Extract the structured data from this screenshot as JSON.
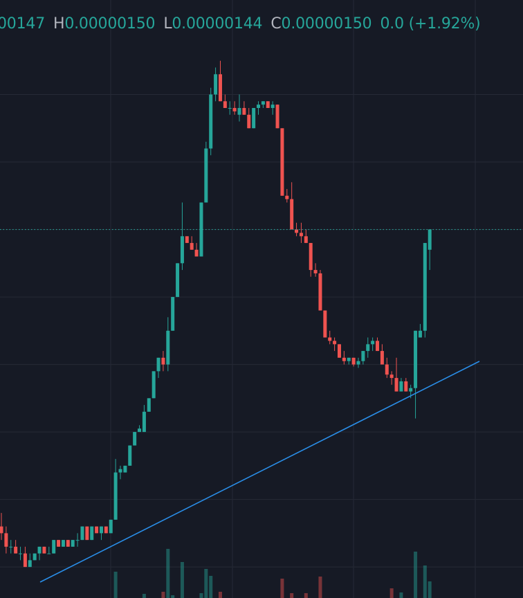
{
  "chart_data": {
    "type": "candlestick",
    "header": {
      "open": "00147",
      "high_key": "H",
      "high": "0.00000150",
      "low_key": "L",
      "low": "0.00000144",
      "close_key": "C",
      "close": "0.00000150",
      "change": "0.0",
      "change_pct": "(+1.92%)"
    },
    "open": [
      1.06e-06,
      1.05e-06,
      1.03e-06,
      1.03e-06,
      1.02e-06,
      1.02e-06,
      1e-06,
      1.01e-06,
      1.02e-06,
      1.03e-06,
      1.02e-06,
      1.02e-06,
      1.04e-06,
      1.03e-06,
      1.04e-06,
      1.03e-06,
      1.04e-06,
      1.04e-06,
      1.06e-06,
      1.04e-06,
      1.06e-06,
      1.05e-06,
      1.06e-06,
      1.05e-06,
      1.07e-06,
      1.14e-06,
      1.14e-06,
      1.15e-06,
      1.18e-06,
      1.2e-06,
      1.2e-06,
      1.23e-06,
      1.25e-06,
      1.29e-06,
      1.31e-06,
      1.3e-06,
      1.35e-06,
      1.4e-06,
      1.45e-06,
      1.49e-06,
      1.48e-06,
      1.47e-06,
      1.46e-06,
      1.54e-06,
      1.62e-06,
      1.7e-06,
      1.73e-06,
      1.69e-06,
      1.68e-06,
      1.68e-06,
      1.67e-06,
      1.68e-06,
      1.67e-06,
      1.65e-06,
      1.68e-06,
      1.685e-06,
      1.69e-06,
      1.68e-06,
      1.685e-06,
      1.65e-06,
      1.55e-06,
      1.545e-06,
      1.5e-06,
      1.495e-06,
      1.49e-06,
      1.48e-06,
      1.44e-06,
      1.435e-06,
      1.38e-06,
      1.34e-06,
      1.335e-06,
      1.33e-06,
      1.31e-06,
      1.305e-06,
      1.31e-06,
      1.3e-06,
      1.305e-06,
      1.32e-06,
      1.33e-06,
      1.335e-06,
      1.32e-06,
      1.3e-06,
      1.285e-06,
      1.28e-06,
      1.26e-06,
      1.275e-06,
      1.26e-06,
      1.265e-06,
      1.34e-06,
      1.35e-06,
      1.47e-06
    ],
    "high": [
      1.08e-06,
      1.06e-06,
      1.04e-06,
      1.04e-06,
      1.03e-06,
      1.03e-06,
      1.02e-06,
      1.02e-06,
      1.03e-06,
      1.03e-06,
      1.03e-06,
      1.04e-06,
      1.04e-06,
      1.04e-06,
      1.04e-06,
      1.04e-06,
      1.05e-06,
      1.06e-06,
      1.06e-06,
      1.06e-06,
      1.06e-06,
      1.06e-06,
      1.06e-06,
      1.07e-06,
      1.16e-06,
      1.15e-06,
      1.15e-06,
      1.18e-06,
      1.2e-06,
      1.21e-06,
      1.24e-06,
      1.25e-06,
      1.29e-06,
      1.31e-06,
      1.32e-06,
      1.37e-06,
      1.4e-06,
      1.45e-06,
      1.54e-06,
      1.49e-06,
      1.49e-06,
      1.48e-06,
      1.54e-06,
      1.63e-06,
      1.71e-06,
      1.74e-06,
      1.75e-06,
      1.7e-06,
      1.69e-06,
      1.69e-06,
      1.7e-06,
      1.69e-06,
      1.68e-06,
      1.68e-06,
      1.69e-06,
      1.69e-06,
      1.69e-06,
      1.69e-06,
      1.685e-06,
      1.65e-06,
      1.56e-06,
      1.57e-06,
      1.51e-06,
      1.51e-06,
      1.5e-06,
      1.48e-06,
      1.45e-06,
      1.44e-06,
      1.38e-06,
      1.35e-06,
      1.34e-06,
      1.33e-06,
      1.32e-06,
      1.31e-06,
      1.31e-06,
      1.31e-06,
      1.32e-06,
      1.34e-06,
      1.34e-06,
      1.34e-06,
      1.33e-06,
      1.31e-06,
      1.29e-06,
      1.31e-06,
      1.28e-06,
      1.28e-06,
      1.27e-06,
      1.35e-06,
      1.36e-06,
      1.48e-06,
      1.5e-06
    ],
    "low": [
      1.04e-06,
      1.02e-06,
      1.02e-06,
      1.02e-06,
      1.01e-06,
      1e-06,
      1e-06,
      1.01e-06,
      1.01e-06,
      1.02e-06,
      1.02e-06,
      1.02e-06,
      1.03e-06,
      1.03e-06,
      1.03e-06,
      1.03e-06,
      1.03e-06,
      1.04e-06,
      1.04e-06,
      1.04e-06,
      1.05e-06,
      1.04e-06,
      1.05e-06,
      1.05e-06,
      1.07e-06,
      1.13e-06,
      1.14e-06,
      1.15e-06,
      1.18e-06,
      1.2e-06,
      1.2e-06,
      1.23e-06,
      1.25e-06,
      1.28e-06,
      1.29e-06,
      1.29e-06,
      1.35e-06,
      1.4e-06,
      1.44e-06,
      1.48e-06,
      1.47e-06,
      1.46e-06,
      1.46e-06,
      1.54e-06,
      1.61e-06,
      1.69e-06,
      1.69e-06,
      1.68e-06,
      1.67e-06,
      1.67e-06,
      1.66e-06,
      1.67e-06,
      1.65e-06,
      1.65e-06,
      1.67e-06,
      1.68e-06,
      1.68e-06,
      1.67e-06,
      1.65e-06,
      1.55e-06,
      1.54e-06,
      1.5e-06,
      1.49e-06,
      1.48e-06,
      1.48e-06,
      1.43e-06,
      1.43e-06,
      1.38e-06,
      1.34e-06,
      1.33e-06,
      1.32e-06,
      1.31e-06,
      1.3e-06,
      1.3e-06,
      1.297e-06,
      1.295e-06,
      1.3e-06,
      1.31e-06,
      1.32e-06,
      1.32e-06,
      1.3e-06,
      1.28e-06,
      1.27e-06,
      1.26e-06,
      1.26e-06,
      1.26e-06,
      1.25e-06,
      1.22e-06,
      1.34e-06,
      1.34e-06,
      1.44e-06
    ],
    "close": [
      1.05e-06,
      1.03e-06,
      1.03e-06,
      1.02e-06,
      1.02e-06,
      1e-06,
      1.01e-06,
      1.02e-06,
      1.03e-06,
      1.02e-06,
      1.02e-06,
      1.04e-06,
      1.03e-06,
      1.04e-06,
      1.03e-06,
      1.04e-06,
      1.04e-06,
      1.06e-06,
      1.04e-06,
      1.06e-06,
      1.05e-06,
      1.06e-06,
      1.05e-06,
      1.07e-06,
      1.14e-06,
      1.145e-06,
      1.15e-06,
      1.18e-06,
      1.2e-06,
      1.205e-06,
      1.23e-06,
      1.25e-06,
      1.29e-06,
      1.31e-06,
      1.3e-06,
      1.35e-06,
      1.4e-06,
      1.45e-06,
      1.49e-06,
      1.48e-06,
      1.47e-06,
      1.46e-06,
      1.54e-06,
      1.62e-06,
      1.7e-06,
      1.73e-06,
      1.69e-06,
      1.68e-06,
      1.68e-06,
      1.675e-06,
      1.68e-06,
      1.67e-06,
      1.65e-06,
      1.68e-06,
      1.685e-06,
      1.69e-06,
      1.68e-06,
      1.685e-06,
      1.65e-06,
      1.55e-06,
      1.545e-06,
      1.5e-06,
      1.495e-06,
      1.49e-06,
      1.48e-06,
      1.44e-06,
      1.435e-06,
      1.38e-06,
      1.34e-06,
      1.335e-06,
      1.33e-06,
      1.31e-06,
      1.305e-06,
      1.31e-06,
      1.3e-06,
      1.305e-06,
      1.32e-06,
      1.33e-06,
      1.335e-06,
      1.32e-06,
      1.3e-06,
      1.285e-06,
      1.28e-06,
      1.26e-06,
      1.275e-06,
      1.26e-06,
      1.265e-06,
      1.35e-06,
      1.35e-06,
      1.48e-06,
      1.5e-06
    ],
    "volume": [
      0,
      0,
      0,
      0,
      0,
      0,
      0,
      0,
      0,
      0,
      0,
      0,
      0,
      0,
      0,
      0,
      0,
      0,
      0,
      0,
      0,
      0,
      0,
      0,
      38,
      0,
      0,
      0,
      0,
      0,
      6,
      0,
      0,
      0,
      9,
      71,
      4,
      0,
      52,
      0,
      0,
      0,
      7,
      42,
      32,
      0,
      9,
      0,
      0,
      0,
      0,
      0,
      0,
      0,
      0,
      0,
      0,
      0,
      0,
      28,
      0,
      7,
      0,
      0,
      7,
      0,
      0,
      31,
      0,
      0,
      0,
      0,
      0,
      0,
      0,
      0,
      0,
      0,
      0,
      0,
      0,
      0,
      14,
      0,
      8,
      0,
      0,
      67,
      0,
      47,
      24
    ],
    "volume_lim": [
      0,
      100
    ],
    "up_color": "#26a69a",
    "down_color": "#ef5350",
    "ylim": [
      9.54e-07,
      1.84e-06
    ],
    "yticks": [
      1e-06,
      1.1e-06,
      1.2e-06,
      1.3e-06,
      1.4e-06,
      1.5e-06,
      1.6e-06,
      1.7e-06
    ],
    "grid": true,
    "last_price_line": true
  }
}
